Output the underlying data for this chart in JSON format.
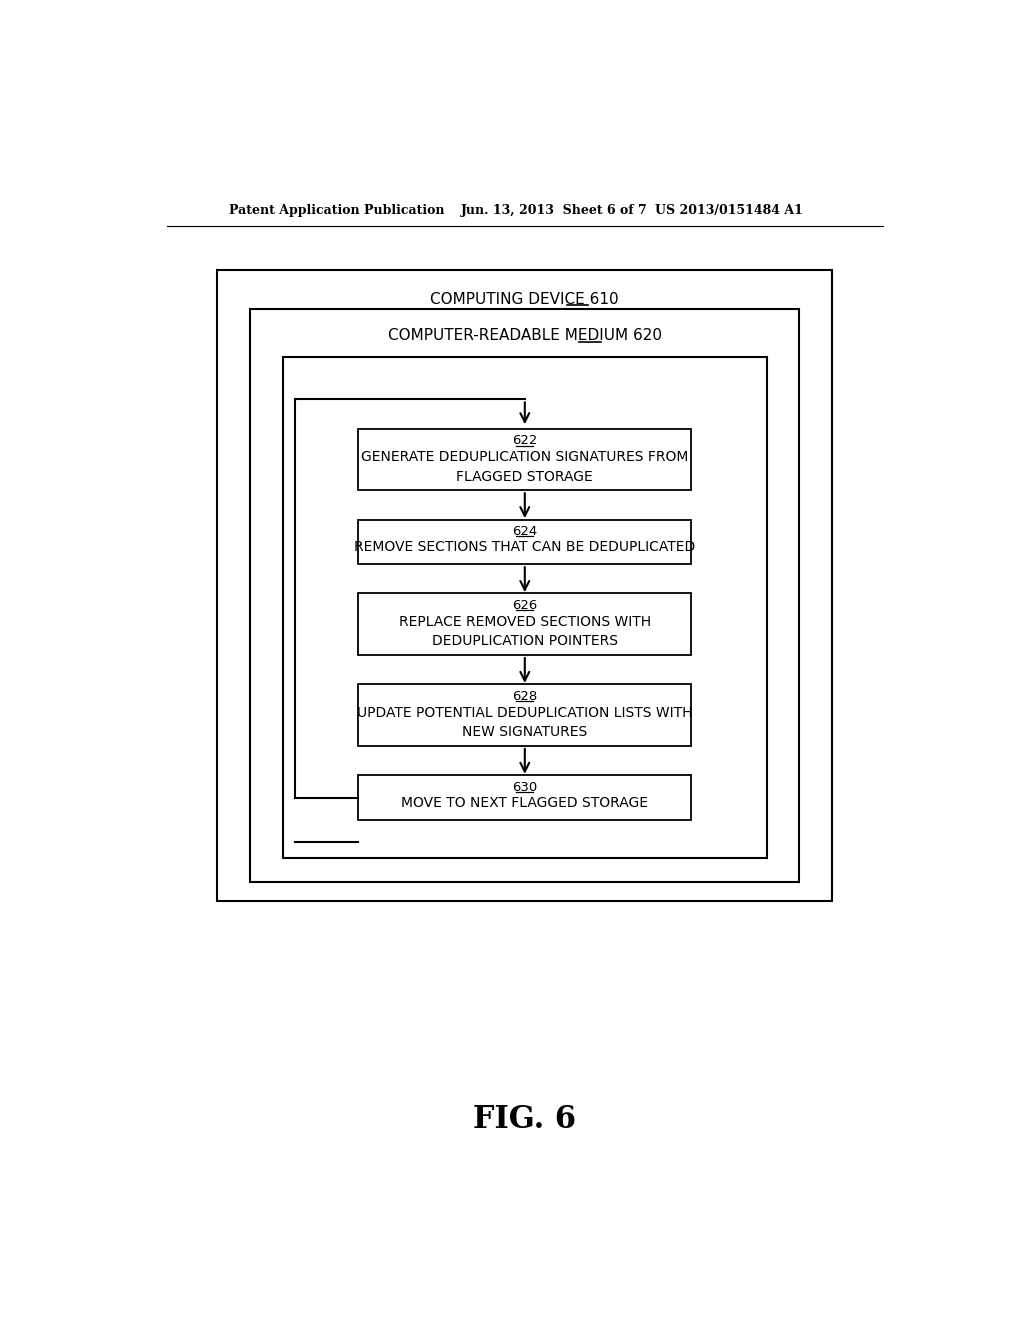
{
  "bg_color": "#ffffff",
  "header_left": "Patent Application Publication",
  "header_mid": "Jun. 13, 2013  Sheet 6 of 7",
  "header_right": "US 2013/0151484 A1",
  "fig_label": "FIG. 6",
  "text_color": "#000000",
  "box_labels": [
    "622",
    "624",
    "626",
    "628",
    "630"
  ],
  "box_texts": [
    "GENERATE DEDUPLICATION SIGNATURES FROM\nFLAGGED STORAGE",
    "REMOVE SECTIONS THAT CAN BE DEDUPLICATED",
    "REPLACE REMOVED SECTIONS WITH\nDEDUPLICATION POINTERS",
    "UPDATE POTENTIAL DEDUPLICATION LISTS WITH\nNEW SIGNATURES",
    "MOVE TO NEXT FLAGGED STORAGE"
  ],
  "outer_label_main": "COMPUTING DEVICE ",
  "outer_label_num": "610",
  "inner_label_main": "COMPUTER-READABLE MEDIUM ",
  "inner_label_num": "620"
}
